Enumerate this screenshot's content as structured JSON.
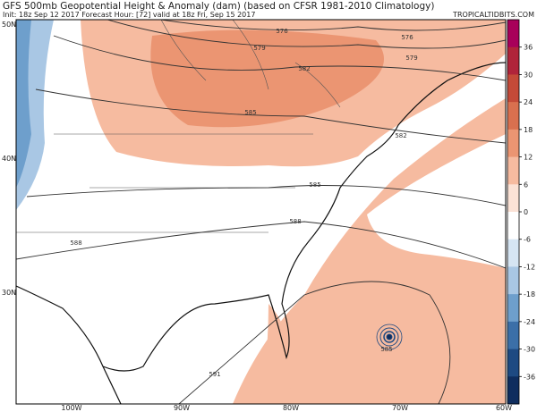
{
  "header": {
    "title": "GFS 500mb Geopotential Height & Anomaly (dam) (based on CFSR 1981-2010 Climatology)",
    "subtitle": "Init: 18z Sep 12 2017   Forecast Hour: [72]   valid at 18z Fri, Sep 15 2017",
    "credit": "TROPICALTIDBITS.COM"
  },
  "map": {
    "lat_labels": [
      "50N",
      "40N",
      "30N"
    ],
    "lon_labels": [
      "100W",
      "90W",
      "80W",
      "70W",
      "60W"
    ],
    "contour_labels": [
      576,
      576,
      579,
      579,
      582,
      585,
      582,
      585,
      588,
      588,
      585,
      591
    ]
  },
  "colorbar": {
    "ticks": [
      36,
      30,
      24,
      18,
      12,
      6,
      0,
      -6,
      -12,
      -18,
      -24,
      -30,
      -36
    ],
    "colors": [
      "#a8005a",
      "#b0243a",
      "#c44a38",
      "#d9704f",
      "#eb9572",
      "#f6bba0",
      "#fbe2d6",
      "#ffffff",
      "#d6e5f3",
      "#a9c7e4",
      "#6e9fcc",
      "#3b6fa8",
      "#1e4a82",
      "#0f2d5e"
    ]
  }
}
